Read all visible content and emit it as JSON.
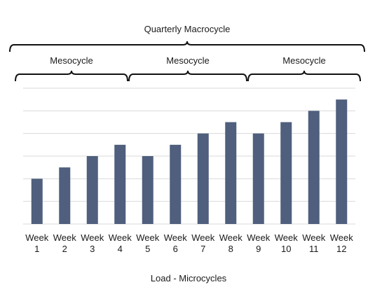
{
  "chart_data": {
    "type": "bar",
    "title": "",
    "xlabel": "Load - Microcycles",
    "ylabel": "",
    "categories": [
      "Week 1",
      "Week 2",
      "Week 3",
      "Week 4",
      "Week 5",
      "Week 6",
      "Week 7",
      "Week 8",
      "Week 9",
      "Week 10",
      "Week 11",
      "Week 12"
    ],
    "category_lines": [
      [
        "Week",
        "1"
      ],
      [
        "Week",
        "2"
      ],
      [
        "Week",
        "3"
      ],
      [
        "Week",
        "4"
      ],
      [
        "Week",
        "5"
      ],
      [
        "Week",
        "6"
      ],
      [
        "Week",
        "7"
      ],
      [
        "Week",
        "8"
      ],
      [
        "Week",
        "9"
      ],
      [
        "Week",
        "10"
      ],
      [
        "Week",
        "11"
      ],
      [
        "Week",
        "12"
      ]
    ],
    "values": [
      2,
      2.5,
      3,
      3.5,
      3,
      3.5,
      4,
      4.5,
      4,
      4.5,
      5,
      5.5
    ],
    "ylim": [
      0,
      6
    ],
    "grid": true,
    "bar_color": "#4f5f7d",
    "grid_color": "#d9d9d9",
    "annotations": {
      "macrocycle": {
        "label": "Quarterly Macrocycle",
        "from_week": 1,
        "to_week": 12
      },
      "mesocycles": [
        {
          "label": "Mesocycle",
          "from_week": 1,
          "to_week": 4
        },
        {
          "label": "Mesocycle",
          "from_week": 5,
          "to_week": 8
        },
        {
          "label": "Mesocycle",
          "from_week": 9,
          "to_week": 12
        }
      ]
    }
  }
}
